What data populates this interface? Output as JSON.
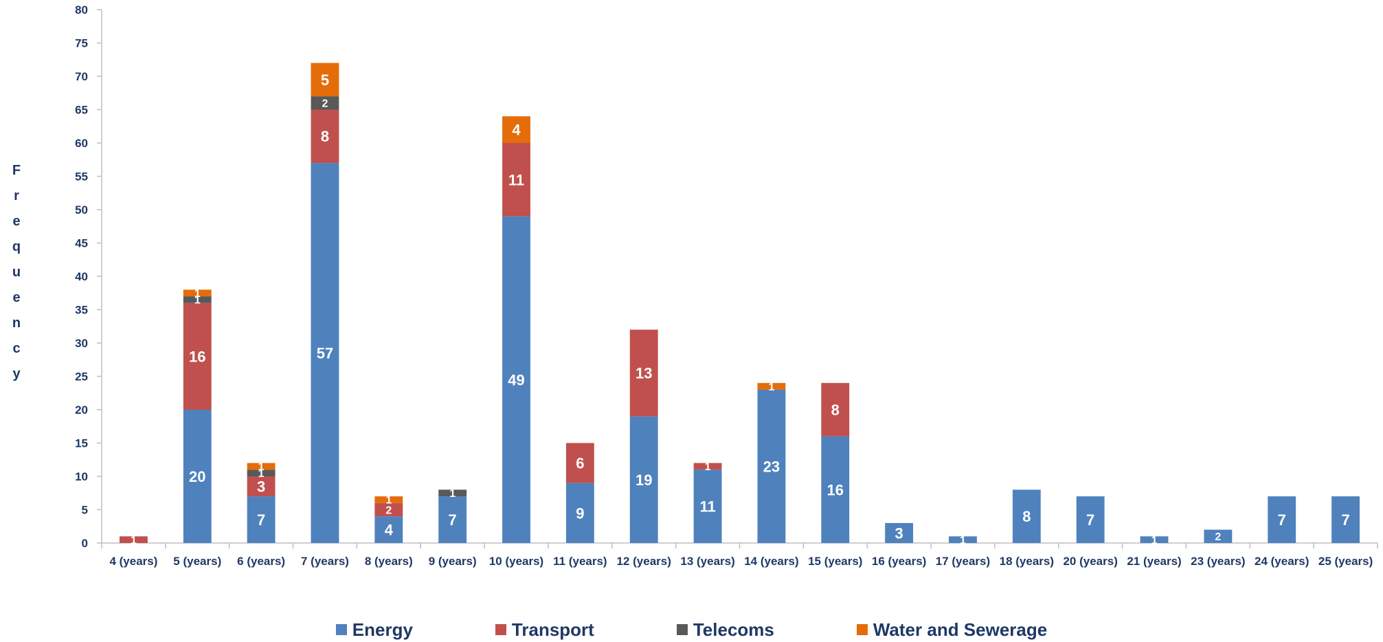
{
  "chart_data": {
    "type": "bar",
    "stacked": true,
    "ylabel": "Frequency",
    "ylim": [
      0,
      80
    ],
    "y_ticks": [
      0,
      5,
      10,
      15,
      20,
      25,
      30,
      35,
      40,
      45,
      50,
      55,
      60,
      65,
      70,
      75,
      80
    ],
    "grid": false,
    "legend_position": "bottom",
    "categories": [
      "4 (years)",
      "5 (years)",
      "6 (years)",
      "7 (years)",
      "8 (years)",
      "9 (years)",
      "10 (years)",
      "11 (years)",
      "12 (years)",
      "13 (years)",
      "14 (years)",
      "15 (years)",
      "16 (years)",
      "17 (years)",
      "18 (years)",
      "20 (years)",
      "21 (years)",
      "23 (years)",
      "24 (years)",
      "25 (years)"
    ],
    "series": [
      {
        "name": "Energy",
        "color": "#4f81bd",
        "values": [
          0,
          20,
          7,
          57,
          4,
          7,
          49,
          9,
          19,
          11,
          23,
          16,
          3,
          1,
          8,
          7,
          1,
          2,
          7,
          7
        ]
      },
      {
        "name": "Transport",
        "color": "#c0504d",
        "values": [
          1,
          16,
          3,
          8,
          2,
          0,
          11,
          6,
          13,
          1,
          0,
          8,
          0,
          0,
          0,
          0,
          0,
          0,
          0,
          0
        ]
      },
      {
        "name": "Telecoms",
        "color": "#595959",
        "values": [
          0,
          1,
          1,
          2,
          0,
          1,
          0,
          0,
          0,
          0,
          0,
          0,
          0,
          0,
          0,
          0,
          0,
          0,
          0,
          0
        ]
      },
      {
        "name": "Water and Sewerage",
        "color": "#e46c0a",
        "values": [
          0,
          1,
          1,
          5,
          1,
          0,
          4,
          0,
          0,
          0,
          1,
          0,
          0,
          0,
          0,
          0,
          0,
          0,
          0,
          0
        ]
      }
    ],
    "axis_color": "#bfbfbf",
    "tick_color": "#1f3864",
    "label_color": "#ffffff"
  }
}
